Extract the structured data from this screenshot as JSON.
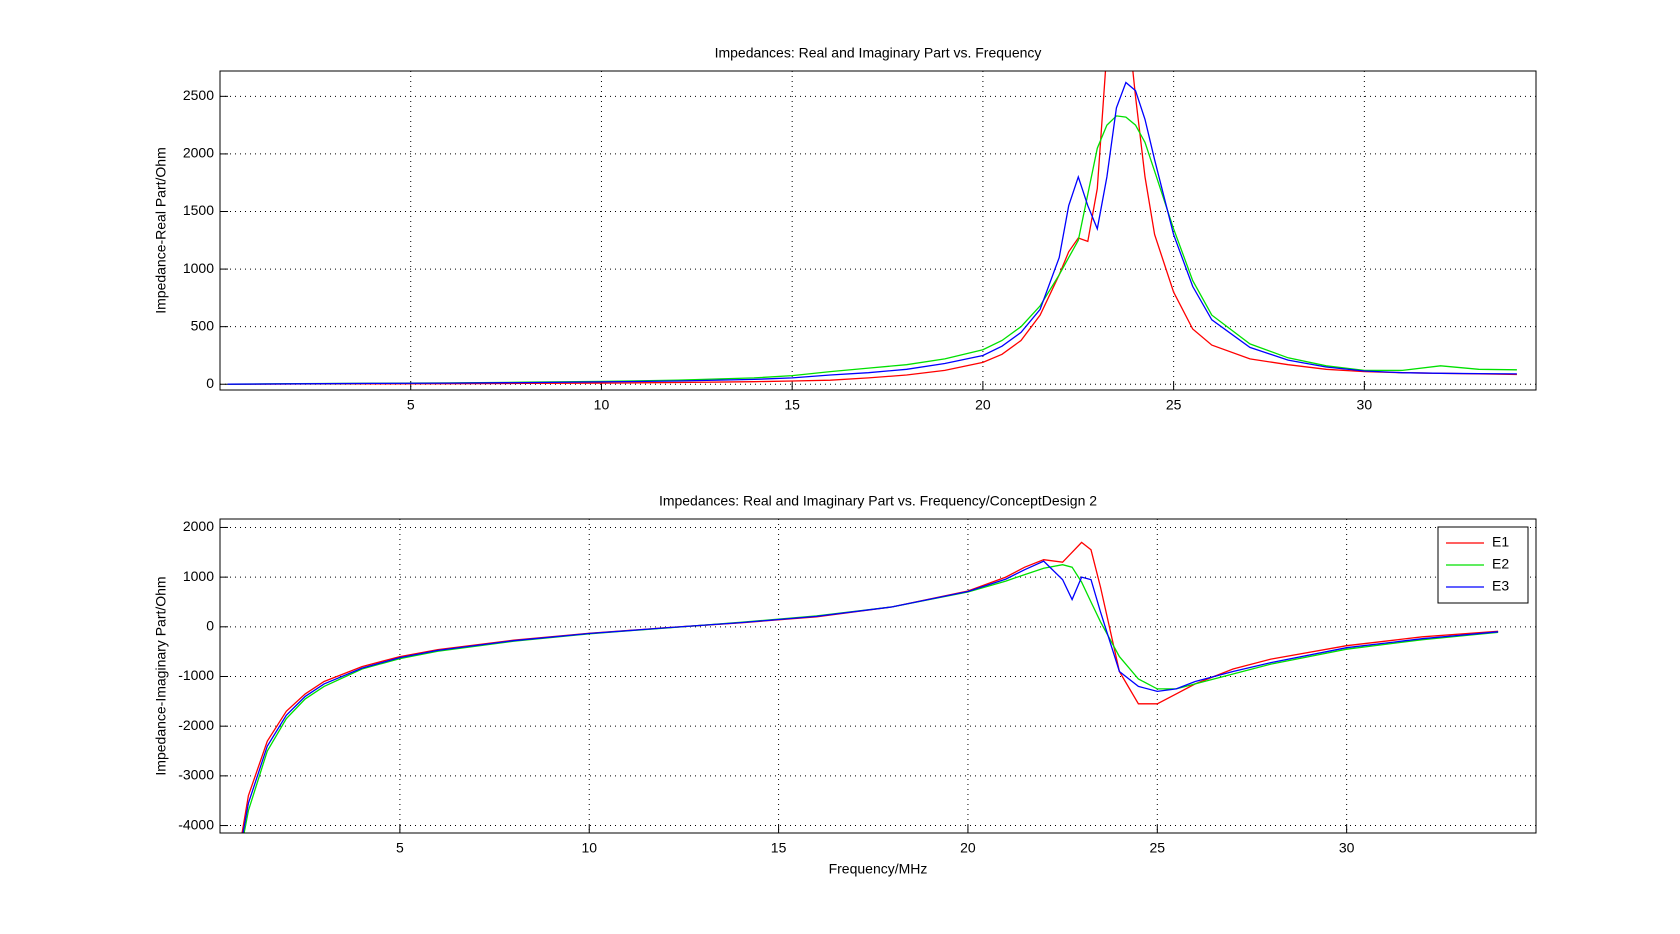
{
  "chart_data": [
    {
      "type": "line",
      "title": "Impedances: Real and Imaginary Part vs. Frequency",
      "ylabel": "Impedance-Real Part/Ohm",
      "x": [
        0.2,
        2,
        4,
        6,
        8,
        10,
        12,
        14,
        15,
        16,
        17,
        18,
        19,
        20,
        20.5,
        21,
        21.5,
        22,
        22.25,
        22.5,
        22.75,
        23,
        23.25,
        23.5,
        23.75,
        24,
        24.25,
        24.5,
        25,
        25.5,
        26,
        27,
        28,
        29,
        30,
        31,
        32,
        33,
        34
      ],
      "series": [
        {
          "name": "E1",
          "color": "#ff0000",
          "values": [
            0,
            2,
            4,
            5,
            7,
            10,
            15,
            22,
            28,
            35,
            55,
            80,
            120,
            190,
            260,
            380,
            600,
            950,
            1150,
            1270,
            1240,
            1700,
            2900,
            3400,
            3300,
            2500,
            1800,
            1300,
            800,
            480,
            340,
            220,
            170,
            130,
            110,
            100,
            95,
            90,
            85
          ]
        },
        {
          "name": "E2",
          "color": "#00e000",
          "values": [
            0,
            5,
            8,
            12,
            18,
            25,
            35,
            55,
            75,
            110,
            140,
            170,
            220,
            300,
            380,
            500,
            680,
            950,
            1100,
            1250,
            1650,
            2050,
            2250,
            2330,
            2320,
            2250,
            2100,
            1850,
            1350,
            900,
            600,
            350,
            230,
            160,
            120,
            120,
            160,
            130,
            125
          ]
        },
        {
          "name": "E3",
          "color": "#0000ff",
          "values": [
            0,
            4,
            7,
            10,
            14,
            20,
            28,
            42,
            55,
            80,
            100,
            130,
            180,
            250,
            330,
            450,
            650,
            1100,
            1550,
            1800,
            1550,
            1350,
            1800,
            2400,
            2620,
            2550,
            2300,
            1950,
            1300,
            850,
            560,
            320,
            210,
            150,
            115,
            100,
            95,
            92,
            90
          ]
        }
      ],
      "xlim": [
        0,
        34.5
      ],
      "ylim": [
        -50,
        2720
      ],
      "xticks": [
        5,
        10,
        15,
        20,
        25,
        30
      ],
      "yticks": [
        0,
        500,
        1000,
        1500,
        2000,
        2500
      ],
      "grid": true
    },
    {
      "type": "line",
      "title": "Impedances: Real and Imaginary Part vs. Frequency/ConceptDesign 2",
      "xlabel": "Frequency/MHz",
      "ylabel": "Impedance-Imaginary Part/Ohm",
      "x": [
        0.8,
        1,
        1.5,
        2,
        2.5,
        3,
        4,
        5,
        6,
        8,
        10,
        12,
        14,
        16,
        18,
        20,
        21,
        21.5,
        22,
        22.5,
        22.75,
        23,
        23.25,
        23.5,
        24,
        24.5,
        25,
        25.5,
        26,
        27,
        28,
        30,
        32,
        34
      ],
      "series": [
        {
          "name": "E1",
          "color": "#ff0000",
          "values": [
            -4300,
            -3400,
            -2300,
            -1700,
            -1350,
            -1100,
            -800,
            -600,
            -460,
            -270,
            -130,
            -20,
            80,
            200,
            400,
            720,
            1000,
            1200,
            1350,
            1300,
            1500,
            1700,
            1550,
            800,
            -900,
            -1550,
            -1550,
            -1350,
            -1150,
            -850,
            -650,
            -380,
            -200,
            -90
          ]
        },
        {
          "name": "E2",
          "color": "#00e000",
          "values": [
            -4500,
            -3700,
            -2500,
            -1850,
            -1450,
            -1200,
            -850,
            -640,
            -490,
            -290,
            -140,
            -25,
            90,
            220,
            400,
            700,
            920,
            1050,
            1180,
            1250,
            1200,
            900,
            500,
            100,
            -600,
            -1050,
            -1250,
            -1250,
            -1150,
            -950,
            -750,
            -450,
            -260,
            -110
          ]
        },
        {
          "name": "E3",
          "color": "#0000ff",
          "values": [
            -4400,
            -3550,
            -2400,
            -1780,
            -1400,
            -1150,
            -830,
            -620,
            -475,
            -280,
            -135,
            -22,
            85,
            210,
            400,
            710,
            960,
            1150,
            1320,
            950,
            550,
            1000,
            950,
            300,
            -900,
            -1200,
            -1300,
            -1250,
            -1100,
            -900,
            -720,
            -420,
            -240,
            -100
          ]
        }
      ],
      "xlim": [
        0.25,
        35
      ],
      "ylim": [
        -4150,
        2170
      ],
      "xticks": [
        5,
        10,
        15,
        20,
        25,
        30
      ],
      "yticks": [
        -4000,
        -3000,
        -2000,
        -1000,
        0,
        1000,
        2000
      ],
      "grid": true,
      "legend": "northeast"
    }
  ]
}
